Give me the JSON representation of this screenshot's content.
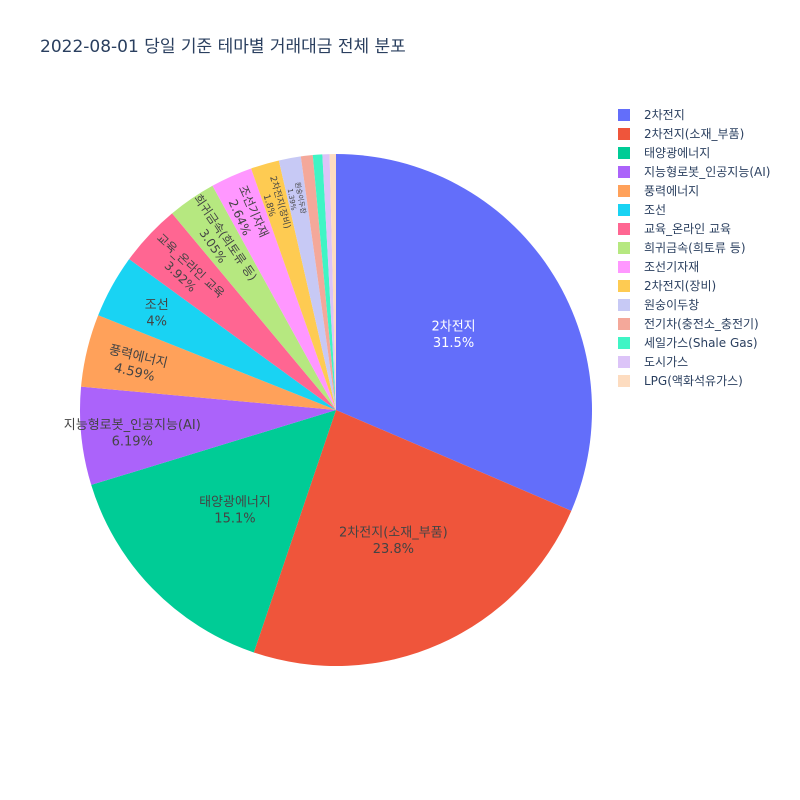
{
  "chart_data": {
    "type": "pie",
    "title": "2022-08-01 당일 기준 테마별 거래대금 전체 분포",
    "legend_position": "top-right",
    "slices": [
      {
        "label": "2차전지",
        "value": 31.5,
        "pct_text": "31.5%",
        "color": "#636efa",
        "text_color": "#ffffff"
      },
      {
        "label": "2차전지(소재_부품)",
        "value": 23.8,
        "pct_text": "23.8%",
        "color": "#ef553b",
        "text_color": "#444444"
      },
      {
        "label": "태양광에너지",
        "value": 15.1,
        "pct_text": "15.1%",
        "color": "#00cc96",
        "text_color": "#444444"
      },
      {
        "label": "지능형로봇_인공지능(AI)",
        "value": 6.19,
        "pct_text": "6.19%",
        "color": "#ab63fa",
        "text_color": "#444444"
      },
      {
        "label": "풍력에너지",
        "value": 4.59,
        "pct_text": "4.59%",
        "color": "#ffa15a",
        "text_color": "#444444"
      },
      {
        "label": "조선",
        "value": 4.0,
        "pct_text": "4%",
        "color": "#19d3f3",
        "text_color": "#444444"
      },
      {
        "label": "교육_온라인 교육",
        "value": 3.92,
        "pct_text": "3.92%",
        "color": "#ff6692",
        "text_color": "#444444"
      },
      {
        "label": "희귀금속(희토류 등)",
        "value": 3.05,
        "pct_text": "3.05%",
        "color": "#b6e880",
        "text_color": "#444444"
      },
      {
        "label": "조선기자재",
        "value": 2.64,
        "pct_text": "2.64%",
        "color": "#ff97ff",
        "text_color": "#444444"
      },
      {
        "label": "2차전지(장비)",
        "value": 1.8,
        "pct_text": "1.8%",
        "color": "#fecb52",
        "text_color": "#444444"
      },
      {
        "label": "원숭이두창",
        "value": 1.39,
        "pct_text": "1.39%",
        "color": "#c7c9f5",
        "text_color": "#444444"
      },
      {
        "label": "전기차(충전소_충전기)",
        "value": 0.75,
        "pct_text": "",
        "color": "#f4a89a",
        "text_color": "#444444"
      },
      {
        "label": "세일가스(Shale Gas)",
        "value": 0.6,
        "pct_text": "",
        "color": "#3ff5c5",
        "text_color": "#444444"
      },
      {
        "label": "도시가스",
        "value": 0.45,
        "pct_text": "",
        "color": "#dcc4f8",
        "text_color": "#444444"
      },
      {
        "label": "LPG(액화석유가스)",
        "value": 0.4,
        "pct_text": "",
        "color": "#fddcc0",
        "text_color": "#444444"
      }
    ]
  }
}
